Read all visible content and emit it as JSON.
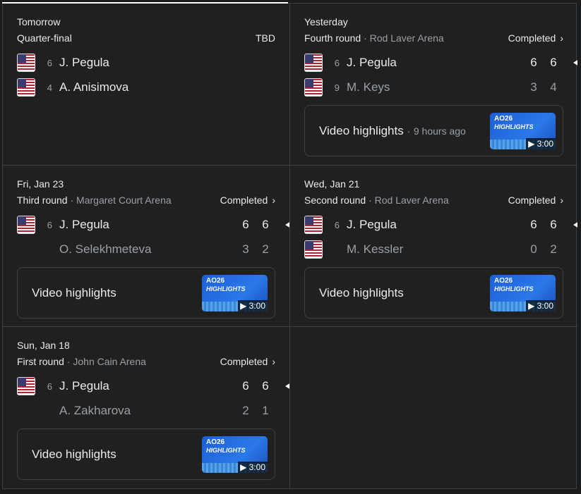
{
  "matches": [
    {
      "date": "Tomorrow",
      "round": "Quarter-final",
      "venue": "",
      "status": "TBD",
      "players": [
        {
          "seed": "6",
          "name": "J. Pegula",
          "flag": "usa",
          "scores": []
        },
        {
          "seed": "4",
          "name": "A. Anisimova",
          "flag": "usa",
          "scores": []
        }
      ]
    },
    {
      "date": "Yesterday",
      "round": "Fourth round",
      "venue": "Rod Laver Arena",
      "status": "Completed",
      "players": [
        {
          "seed": "6",
          "name": "J. Pegula",
          "flag": "usa",
          "scores": [
            "6",
            "6"
          ],
          "winner": true
        },
        {
          "seed": "9",
          "name": "M. Keys",
          "flag": "usa",
          "scores": [
            "3",
            "4"
          ]
        }
      ],
      "video": {
        "label": "Video highlights",
        "ago": "9 hours ago",
        "duration": "3:00"
      }
    },
    {
      "date": "Fri, Jan 23",
      "round": "Third round",
      "venue": "Margaret Court Arena",
      "status": "Completed",
      "players": [
        {
          "seed": "6",
          "name": "J. Pegula",
          "flag": "usa",
          "scores": [
            "6",
            "6"
          ],
          "winner": true
        },
        {
          "seed": "",
          "name": "O. Selekhmeteva",
          "flag": "",
          "scores": [
            "3",
            "2"
          ]
        }
      ],
      "video": {
        "label": "Video highlights",
        "duration": "3:00"
      }
    },
    {
      "date": "Wed, Jan 21",
      "round": "Second round",
      "venue": "Rod Laver Arena",
      "status": "Completed",
      "players": [
        {
          "seed": "6",
          "name": "J. Pegula",
          "flag": "usa",
          "scores": [
            "6",
            "6"
          ],
          "winner": true
        },
        {
          "seed": "",
          "name": "M. Kessler",
          "flag": "usa",
          "scores": [
            "0",
            "2"
          ]
        }
      ],
      "video": {
        "label": "Video highlights",
        "duration": "3:00"
      }
    },
    {
      "date": "Sun, Jan 18",
      "round": "First round",
      "venue": "John Cain Arena",
      "status": "Completed",
      "players": [
        {
          "seed": "6",
          "name": "J. Pegula",
          "flag": "usa",
          "scores": [
            "6",
            "6"
          ],
          "winner": true
        },
        {
          "seed": "",
          "name": "A. Zakharova",
          "flag": "",
          "scores": [
            "2",
            "1"
          ]
        }
      ],
      "video": {
        "label": "Video highlights",
        "duration": "3:00"
      }
    }
  ],
  "thumb": {
    "logo": "AO26",
    "title": "HIGHLIGHTS"
  }
}
